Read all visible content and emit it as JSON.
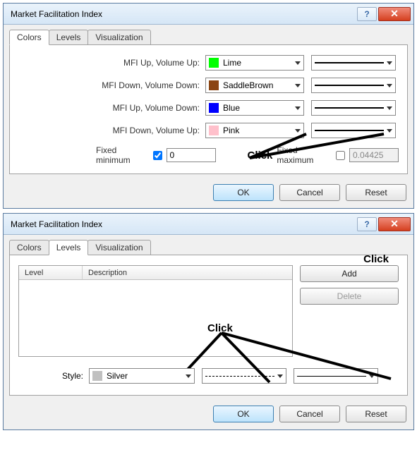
{
  "dialog1": {
    "title": "Market Facilitation Index",
    "tabs": [
      "Colors",
      "Levels",
      "Visualization"
    ],
    "active_tab": 0,
    "rows": [
      {
        "label": "MFI Up, Volume Up:",
        "color_name": "Lime",
        "color_hex": "#00ff00"
      },
      {
        "label": "MFI Down, Volume Down:",
        "color_name": "SaddleBrown",
        "color_hex": "#8b4513"
      },
      {
        "label": "MFI Up, Volume Down:",
        "color_name": "Blue",
        "color_hex": "#0000ff"
      },
      {
        "label": "MFI Down, Volume Up:",
        "color_name": "Pink",
        "color_hex": "#ffc0cb"
      }
    ],
    "fixed_min_label": "Fixed minimum",
    "fixed_min_checked": true,
    "fixed_min_value": "0",
    "fixed_max_label": "Fixed maximum",
    "fixed_max_checked": false,
    "fixed_max_value": "0.04425",
    "buttons": {
      "ok": "OK",
      "cancel": "Cancel",
      "reset": "Reset"
    },
    "annotation_click": "Click"
  },
  "dialog2": {
    "title": "Market Facilitation Index",
    "tabs": [
      "Colors",
      "Levels",
      "Visualization"
    ],
    "active_tab": 1,
    "columns": [
      "Level",
      "Description"
    ],
    "add_label": "Add",
    "delete_label": "Delete",
    "style_label": "Style:",
    "style_color_name": "Silver",
    "style_color_hex": "#c0c0c0",
    "buttons": {
      "ok": "OK",
      "cancel": "Cancel",
      "reset": "Reset"
    },
    "annotation_click": "Click",
    "annotation_click2": "Click"
  }
}
